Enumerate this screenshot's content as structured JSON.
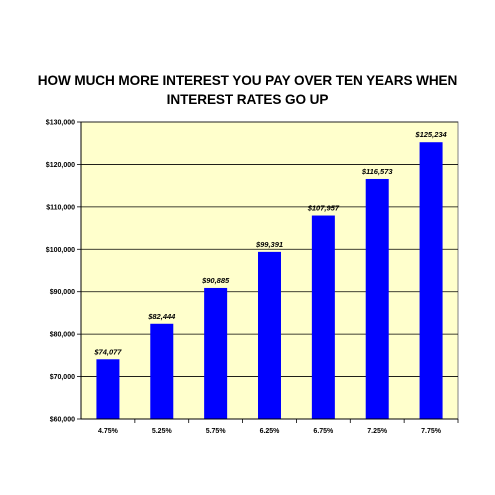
{
  "chart_data": {
    "type": "bar",
    "title_lines": [
      "HOW MUCH MORE INTEREST YOU PAY OVER TEN YEARS WHEN",
      "INTEREST RATES GO UP"
    ],
    "categories": [
      "4.75%",
      "5.25%",
      "5.75%",
      "6.25%",
      "6.75%",
      "7.25%",
      "7.75%"
    ],
    "values": [
      74077,
      82444,
      90885,
      99391,
      107957,
      116573,
      125234
    ],
    "data_labels": [
      "$74,077",
      "$82,444",
      "$90,885",
      "$99,391",
      "$107,957",
      "$116,573",
      "$125,234"
    ],
    "y_ticks": [
      60000,
      70000,
      80000,
      90000,
      100000,
      110000,
      120000,
      130000
    ],
    "y_tick_labels": [
      "$60,000",
      "$70,000",
      "$80,000",
      "$90,000",
      "$100,000",
      "$110,000",
      "$120,000",
      "$130,000"
    ],
    "ylim": [
      60000,
      130000
    ],
    "grid": true,
    "legend": "none",
    "colors": {
      "bar": "#0000ff",
      "plot_background": "#ffffcc",
      "grid": "#000000"
    }
  }
}
